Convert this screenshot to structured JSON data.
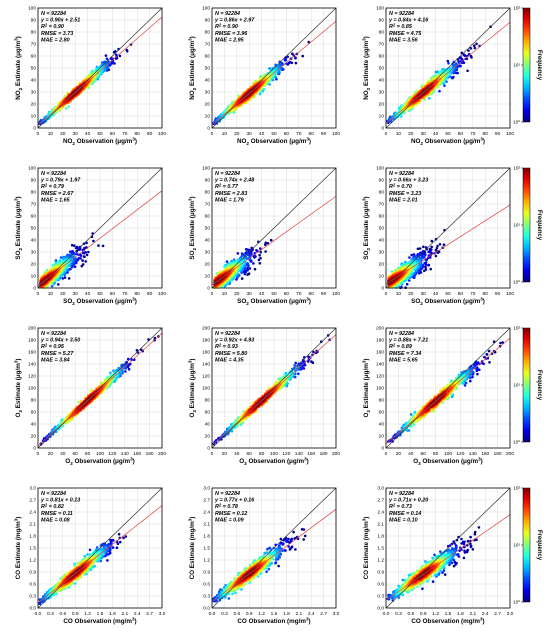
{
  "figure": {
    "colorbar_label": "Frequency",
    "colorbar_ticks": [
      "10⁰",
      "10¹",
      "10²"
    ]
  },
  "chart_data": [
    {
      "type": "scatter",
      "pollutant": "NO2",
      "column": 1,
      "xlabel_main": "NO",
      "xlabel_sub": "2",
      "xlabel_rest": " Observation (μg/m",
      "xlabel_sup": "3",
      "xlabel_end": ")",
      "ylabel_main": "NO",
      "ylabel_sub": "2",
      "ylabel_rest": " Estimate (μg/m",
      "ylabel_sup": "3",
      "ylabel_end": ")",
      "xlim": [
        0,
        100
      ],
      "ylim": [
        0,
        100
      ],
      "xticks": [
        "0",
        "10",
        "20",
        "30",
        "40",
        "50",
        "60",
        "70",
        "80",
        "90",
        "100"
      ],
      "yticks": [
        "0",
        "10",
        "20",
        "30",
        "40",
        "50",
        "60",
        "70",
        "80",
        "90",
        "100"
      ],
      "fit": {
        "slope": 0.9,
        "intercept": 2.51
      },
      "spread": 0.12,
      "stats": [
        "N = 92284",
        "y = 0.90x + 2.51",
        "R² = 0.90",
        "RMSE = 3.73",
        "MAE = 2.80"
      ]
    },
    {
      "type": "scatter",
      "pollutant": "NO2",
      "column": 2,
      "xlabel_main": "NO",
      "xlabel_sub": "2",
      "xlabel_rest": " Observation (μg/m",
      "xlabel_sup": "3",
      "xlabel_end": ")",
      "ylabel_main": "NO",
      "ylabel_sub": "2",
      "ylabel_rest": " Estimate (μg/m",
      "ylabel_sup": "3",
      "ylabel_end": ")",
      "xlim": [
        0,
        100
      ],
      "ylim": [
        0,
        100
      ],
      "xticks": [
        "0",
        "10",
        "20",
        "30",
        "40",
        "50",
        "60",
        "70",
        "80",
        "90",
        "100"
      ],
      "yticks": [
        "0",
        "10",
        "20",
        "30",
        "40",
        "50",
        "60",
        "70",
        "80",
        "90",
        "100"
      ],
      "fit": {
        "slope": 0.86,
        "intercept": 2.97
      },
      "spread": 0.14,
      "stats": [
        "N = 92284",
        "y = 0.86x + 2.97",
        "R² = 0.90",
        "RMSE = 3.96",
        "MAE = 2.95"
      ]
    },
    {
      "type": "scatter",
      "pollutant": "NO2",
      "column": 3,
      "xlabel_main": "NO",
      "xlabel_sub": "2",
      "xlabel_rest": " Observation (μg/m",
      "xlabel_sup": "3",
      "xlabel_end": ")",
      "ylabel_main": "NO",
      "ylabel_sub": "2",
      "ylabel_rest": " Estimate (μg/m",
      "ylabel_sup": "3",
      "ylabel_end": ")",
      "xlim": [
        0,
        100
      ],
      "ylim": [
        0,
        100
      ],
      "xticks": [
        "0",
        "10",
        "20",
        "30",
        "40",
        "50",
        "60",
        "70",
        "80",
        "90",
        "100"
      ],
      "yticks": [
        "0",
        "10",
        "20",
        "30",
        "40",
        "50",
        "60",
        "70",
        "80",
        "90",
        "100"
      ],
      "fit": {
        "slope": 0.84,
        "intercept": 4.16
      },
      "spread": 0.17,
      "stats": [
        "N = 92284",
        "y = 0.84x + 4.16",
        "R² = 0.85",
        "RMSE = 4.75",
        "MAE = 3.56"
      ]
    },
    {
      "type": "scatter",
      "pollutant": "SO2",
      "column": 1,
      "xlabel_main": "SO",
      "xlabel_sub": "2",
      "xlabel_rest": " Observation (μg/m",
      "xlabel_sup": "3",
      "xlabel_end": ")",
      "ylabel_main": "SO",
      "ylabel_sub": "2",
      "ylabel_rest": " Estimate (μg/m",
      "ylabel_sup": "3",
      "ylabel_end": ")",
      "xlim": [
        0,
        100
      ],
      "ylim": [
        0,
        100
      ],
      "xticks": [
        "0",
        "10",
        "20",
        "30",
        "40",
        "50",
        "60",
        "70",
        "80",
        "90",
        "100"
      ],
      "yticks": [
        "0",
        "10",
        "20",
        "30",
        "40",
        "50",
        "60",
        "70",
        "80",
        "90",
        "100"
      ],
      "fit": {
        "slope": 0.79,
        "intercept": 1.97
      },
      "spread": 0.28,
      "stats": [
        "N = 92284",
        "y = 0.79x + 1.97",
        "R² = 0.79",
        "RMSE = 2.67",
        "MAE = 1.65"
      ]
    },
    {
      "type": "scatter",
      "pollutant": "SO2",
      "column": 2,
      "xlabel_main": "SO",
      "xlabel_sub": "2",
      "xlabel_rest": " Observation (μg/m",
      "xlabel_sup": "3",
      "xlabel_end": ")",
      "ylabel_main": "SO",
      "ylabel_sub": "2",
      "ylabel_rest": " Estimate (μg/m",
      "ylabel_sup": "3",
      "ylabel_end": ")",
      "xlim": [
        0,
        100
      ],
      "ylim": [
        0,
        100
      ],
      "xticks": [
        "0",
        "10",
        "20",
        "30",
        "40",
        "50",
        "60",
        "70",
        "80",
        "90",
        "100"
      ],
      "yticks": [
        "0",
        "10",
        "20",
        "30",
        "40",
        "50",
        "60",
        "70",
        "80",
        "90",
        "100"
      ],
      "fit": {
        "slope": 0.74,
        "intercept": 2.48
      },
      "spread": 0.3,
      "stats": [
        "N = 92284",
        "y = 0.74x + 2.48",
        "R² = 0.77",
        "RMSE = 2.83",
        "MAE = 1.79"
      ]
    },
    {
      "type": "scatter",
      "pollutant": "SO2",
      "column": 3,
      "xlabel_main": "SO",
      "xlabel_sub": "2",
      "xlabel_rest": " Observation (μg/m",
      "xlabel_sup": "3",
      "xlabel_end": ")",
      "ylabel_main": "SO",
      "ylabel_sub": "2",
      "ylabel_rest": " Estimate (μg/m",
      "ylabel_sup": "3",
      "ylabel_end": ")",
      "xlim": [
        0,
        100
      ],
      "ylim": [
        0,
        100
      ],
      "xticks": [
        "0",
        "10",
        "20",
        "30",
        "40",
        "50",
        "60",
        "70",
        "80",
        "90",
        "100"
      ],
      "yticks": [
        "0",
        "10",
        "20",
        "30",
        "40",
        "50",
        "60",
        "70",
        "80",
        "90",
        "100"
      ],
      "fit": {
        "slope": 0.66,
        "intercept": 3.23
      },
      "spread": 0.33,
      "stats": [
        "N = 92284",
        "y = 0.66x + 3.23",
        "R² = 0.70",
        "RMSE = 3.23",
        "MAE = 2.01"
      ]
    },
    {
      "type": "scatter",
      "pollutant": "O3",
      "column": 1,
      "xlabel_main": "O",
      "xlabel_sub": "3",
      "xlabel_rest": " Observation (μg/m",
      "xlabel_sup": "3",
      "xlabel_end": ")",
      "ylabel_main": "O",
      "ylabel_sub": "3",
      "ylabel_rest": " Estimate (μg/m",
      "ylabel_sup": "3",
      "ylabel_end": ")",
      "xlim": [
        0,
        200
      ],
      "ylim": [
        0,
        200
      ],
      "xticks": [
        "0",
        "20",
        "40",
        "60",
        "80",
        "100",
        "120",
        "140",
        "160",
        "180",
        "200"
      ],
      "yticks": [
        "0",
        "20",
        "40",
        "60",
        "80",
        "100",
        "120",
        "140",
        "160",
        "180",
        "200"
      ],
      "fit": {
        "slope": 0.94,
        "intercept": 3.5
      },
      "spread": 0.09,
      "stats": [
        "N = 92284",
        "y = 0.94x + 3.50",
        "R² = 0.95",
        "RMSE = 5.27",
        "MAE = 3.84"
      ]
    },
    {
      "type": "scatter",
      "pollutant": "O3",
      "column": 2,
      "xlabel_main": "O",
      "xlabel_sub": "3",
      "xlabel_rest": " Observation (μg/m",
      "xlabel_sup": "3",
      "xlabel_end": ")",
      "ylabel_main": "O",
      "ylabel_sub": "3",
      "ylabel_rest": " Estimate (μg/m",
      "ylabel_sup": "3",
      "ylabel_end": ")",
      "xlim": [
        0,
        200
      ],
      "ylim": [
        0,
        200
      ],
      "xticks": [
        "0",
        "20",
        "40",
        "60",
        "80",
        "100",
        "120",
        "140",
        "160",
        "180",
        "200"
      ],
      "yticks": [
        "0",
        "20",
        "40",
        "60",
        "80",
        "100",
        "120",
        "140",
        "160",
        "180",
        "200"
      ],
      "fit": {
        "slope": 0.92,
        "intercept": 4.93
      },
      "spread": 0.1,
      "stats": [
        "N = 92284",
        "y = 0.92x + 4.93",
        "R² = 0.93",
        "RMSE = 5.80",
        "MAE = 4.35"
      ]
    },
    {
      "type": "scatter",
      "pollutant": "O3",
      "column": 3,
      "xlabel_main": "O",
      "xlabel_sub": "3",
      "xlabel_rest": " Observation (μg/m",
      "xlabel_sup": "3",
      "xlabel_end": ")",
      "ylabel_main": "O",
      "ylabel_sub": "3",
      "ylabel_rest": " Estimate (μg/m",
      "ylabel_sup": "3",
      "ylabel_end": ")",
      "xlim": [
        0,
        200
      ],
      "ylim": [
        0,
        200
      ],
      "xticks": [
        "0",
        "20",
        "40",
        "60",
        "80",
        "100",
        "120",
        "140",
        "160",
        "180",
        "200"
      ],
      "yticks": [
        "0",
        "20",
        "40",
        "60",
        "80",
        "100",
        "120",
        "140",
        "160",
        "180",
        "200"
      ],
      "fit": {
        "slope": 0.88,
        "intercept": 7.21
      },
      "spread": 0.13,
      "stats": [
        "N = 92284",
        "y = 0.88x + 7.21",
        "R² = 0.89",
        "RMSE = 7.34",
        "MAE = 5.65"
      ]
    },
    {
      "type": "scatter",
      "pollutant": "CO",
      "column": 1,
      "xlabel_main": "CO Observation (mg/m",
      "xlabel_sub": "",
      "xlabel_rest": "",
      "xlabel_sup": "3",
      "xlabel_end": ")",
      "ylabel_main": "CO Estimate (mg/m",
      "ylabel_sub": "",
      "ylabel_rest": "",
      "ylabel_sup": "3",
      "ylabel_end": ")",
      "xlim": [
        0,
        3.0
      ],
      "ylim": [
        0,
        3.0
      ],
      "xticks": [
        "0.0",
        "0.3",
        "0.6",
        "0.9",
        "1.2",
        "1.5",
        "1.8",
        "2.1",
        "2.4",
        "2.7",
        "3.0"
      ],
      "yticks": [
        "0.0",
        "0.3",
        "0.6",
        "0.9",
        "1.2",
        "1.5",
        "1.8",
        "2.1",
        "2.4",
        "2.7",
        "3.0"
      ],
      "fit": {
        "slope": 0.81,
        "intercept": 0.13
      },
      "spread": 0.17,
      "stats": [
        "N = 92284",
        "y = 0.81x + 0.13",
        "R² = 0.82",
        "RMSE = 0.11",
        "MAE = 0.08"
      ]
    },
    {
      "type": "scatter",
      "pollutant": "CO",
      "column": 2,
      "xlabel_main": "CO Observation (mg/m",
      "xlabel_sub": "",
      "xlabel_rest": "",
      "xlabel_sup": "3",
      "xlabel_end": ")",
      "ylabel_main": "CO Estimate (mg/m",
      "ylabel_sub": "",
      "ylabel_rest": "",
      "ylabel_sup": "3",
      "ylabel_end": ")",
      "xlim": [
        0,
        3.0
      ],
      "ylim": [
        0,
        3.0
      ],
      "xticks": [
        "0.0",
        "0.3",
        "0.6",
        "0.9",
        "1.2",
        "1.5",
        "1.8",
        "2.1",
        "2.4",
        "2.7",
        "3.0"
      ],
      "yticks": [
        "0.0",
        "0.3",
        "0.6",
        "0.9",
        "1.2",
        "1.5",
        "1.8",
        "2.1",
        "2.4",
        "2.7",
        "3.0"
      ],
      "fit": {
        "slope": 0.77,
        "intercept": 0.16
      },
      "spread": 0.19,
      "stats": [
        "N = 92284",
        "y = 0.77x + 0.16",
        "R² = 0.78",
        "RMSE = 0.12",
        "MAE = 0.09"
      ]
    },
    {
      "type": "scatter",
      "pollutant": "CO",
      "column": 3,
      "xlabel_main": "CO Observation (mg/m",
      "xlabel_sub": "",
      "xlabel_rest": "",
      "xlabel_sup": "3",
      "xlabel_end": ")",
      "ylabel_main": "CO Estimate (mg/m",
      "ylabel_sub": "",
      "ylabel_rest": "",
      "ylabel_sup": "3",
      "ylabel_end": ")",
      "xlim": [
        0,
        3.0
      ],
      "ylim": [
        0,
        3.0
      ],
      "xticks": [
        "0.0",
        "0.3",
        "0.6",
        "0.9",
        "1.2",
        "1.5",
        "1.8",
        "2.1",
        "2.4",
        "2.7",
        "3.0"
      ],
      "yticks": [
        "0.0",
        "0.3",
        "0.6",
        "0.9",
        "1.2",
        "1.5",
        "1.8",
        "2.1",
        "2.4",
        "2.7",
        "3.0"
      ],
      "fit": {
        "slope": 0.71,
        "intercept": 0.2
      },
      "spread": 0.21,
      "stats": [
        "N = 92284",
        "y = 0.71x + 0.20",
        "R² = 0.73",
        "RMSE = 0.14",
        "MAE = 0.10"
      ]
    }
  ]
}
